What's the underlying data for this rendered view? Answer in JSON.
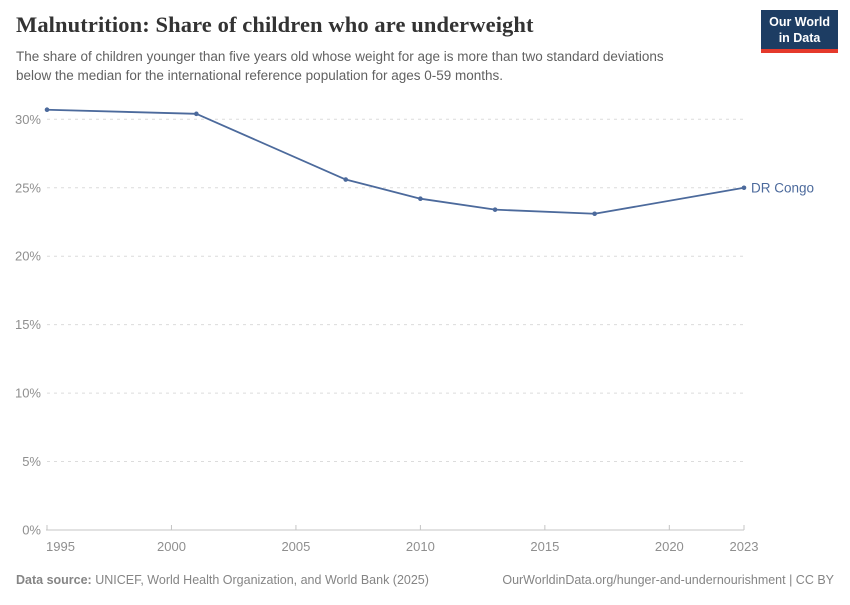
{
  "header": {
    "title": "Malnutrition: Share of children who are underweight",
    "subtitle_lines": [
      "The share of children younger than five years old whose weight for age is more than two standard deviations",
      "below the median for the international reference population for ages 0-59 months."
    ]
  },
  "logo": {
    "line1": "Our World",
    "line2": "in Data",
    "bg_color": "#1d3d63",
    "accent_color": "#e5392b"
  },
  "chart_data": {
    "type": "line",
    "title": "Malnutrition: Share of children who are underweight",
    "xlabel": "",
    "ylabel": "",
    "xlim": [
      1995,
      2023
    ],
    "ylim": [
      0,
      30
    ],
    "grid": "horizontal dashed",
    "legend_position": "end-of-line label",
    "series": [
      {
        "name": "DR Congo",
        "color": "#4c6a9c",
        "x": [
          1995,
          2001,
          2007,
          2010,
          2013,
          2017,
          2023
        ],
        "values": [
          30.7,
          30.4,
          25.6,
          24.2,
          23.4,
          23.1,
          25.0
        ]
      }
    ],
    "x_ticks": [
      {
        "value": 1995,
        "label": "1995"
      },
      {
        "value": 2000,
        "label": "2000"
      },
      {
        "value": 2005,
        "label": "2005"
      },
      {
        "value": 2010,
        "label": "2010"
      },
      {
        "value": 2015,
        "label": "2015"
      },
      {
        "value": 2020,
        "label": "2020"
      },
      {
        "value": 2023,
        "label": "2023"
      }
    ],
    "y_ticks": [
      {
        "value": 0,
        "label": "0%"
      },
      {
        "value": 5,
        "label": "5%"
      },
      {
        "value": 10,
        "label": "10%"
      },
      {
        "value": 15,
        "label": "15%"
      },
      {
        "value": 20,
        "label": "20%"
      },
      {
        "value": 25,
        "label": "25%"
      },
      {
        "value": 30,
        "label": "30%"
      }
    ],
    "colors": {
      "gridline": "#dcdcdc",
      "axis": "#c4c4c4",
      "tick_label": "#8f8f8f"
    }
  },
  "footer": {
    "datasource_label": "Data source:",
    "datasource_text": " UNICEF, World Health Organization, and World Bank (2025)",
    "credit": "OurWorldinData.org/hunger-and-undernourishment | CC BY"
  }
}
